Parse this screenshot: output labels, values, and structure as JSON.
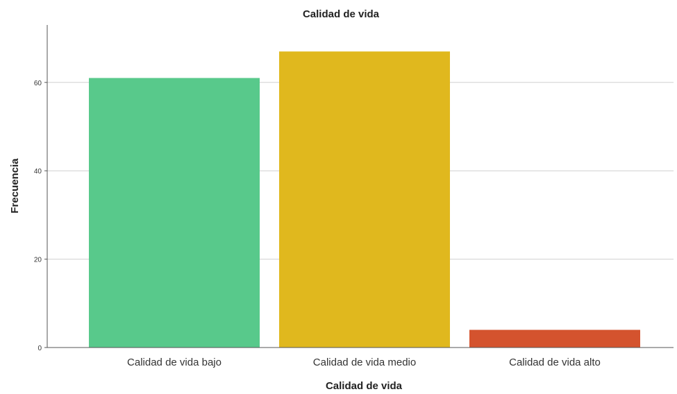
{
  "chart_data": {
    "type": "bar",
    "title": "Calidad de vida",
    "xlabel": "Calidad de vida",
    "ylabel": "Frecuencia",
    "categories": [
      "Calidad de vida bajo",
      "Calidad de vida medio",
      "Calidad de vida alto"
    ],
    "values": [
      61,
      67,
      4
    ],
    "colors": [
      "#58c98b",
      "#e0b81e",
      "#d4532e"
    ],
    "ylim": [
      0,
      73
    ],
    "yticks": [
      0,
      20,
      40,
      60
    ],
    "grid": true,
    "legend": "none"
  }
}
